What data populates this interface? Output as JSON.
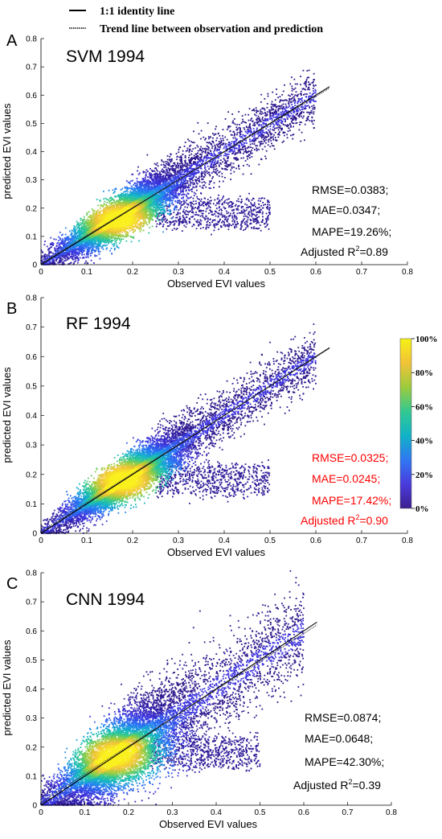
{
  "legend": {
    "identity_label": "1:1 identity line",
    "trend_label": "Trend line between observation and prediction"
  },
  "colorbar": {
    "ticks": [
      "100%",
      "80%",
      "60%",
      "40%",
      "20%",
      "0%"
    ],
    "colors": [
      "#3e1f8f",
      "#4a3bdc",
      "#2f77f2",
      "#11b3c7",
      "#32c991",
      "#9dcb3d",
      "#f2c238",
      "#f5f214"
    ]
  },
  "chart_data": [
    {
      "type": "scatter",
      "panel_letter": "A",
      "title": "SVM 1994",
      "xlabel": "Observed EVI values",
      "ylabel": "predicted EVI values",
      "xlim": [
        0,
        0.8
      ],
      "ylim": [
        0,
        0.8
      ],
      "x_ticks": [
        "0",
        "0.1",
        "0.2",
        "0.3",
        "0.4",
        "0.5",
        "0.6",
        "0.7",
        "0.8"
      ],
      "y_ticks": [
        "0",
        "0.1",
        "0.2",
        "0.3",
        "0.4",
        "0.5",
        "0.6",
        "0.7",
        "0.8"
      ],
      "identity_line": {
        "x": [
          0,
          0.63
        ],
        "y": [
          0,
          0.63
        ]
      },
      "trend_line": {
        "x": [
          0,
          0.63
        ],
        "y": [
          0.005,
          0.625
        ]
      },
      "metrics": {
        "rmse": "RMSE=0.0383;",
        "mae": "MAE=0.0347;",
        "mape": "MAPE=19.26%;",
        "r2_prefix": "Adjusted R",
        "r2_sup": "2",
        "r2_value": "=0.89"
      },
      "metrics_color": "#000000",
      "spread": 0.035,
      "density_center": [
        0.17,
        0.16
      ]
    },
    {
      "type": "scatter",
      "panel_letter": "B",
      "title": "RF 1994",
      "xlabel": "Observed EVI values",
      "ylabel": "predicted EVI values",
      "xlim": [
        0,
        0.8
      ],
      "ylim": [
        0,
        0.8
      ],
      "x_ticks": [
        "0",
        "0.1",
        "0.2",
        "0.3",
        "0.4",
        "0.5",
        "0.6",
        "0.7",
        "0.8"
      ],
      "y_ticks": [
        "0",
        "0.1",
        "0.2",
        "0.3",
        "0.4",
        "0.5",
        "0.6",
        "0.7",
        "0.8"
      ],
      "identity_line": {
        "x": [
          0,
          0.63
        ],
        "y": [
          0,
          0.63
        ]
      },
      "trend_line": {
        "x": [
          0,
          0.63
        ],
        "y": [
          0.005,
          0.628
        ]
      },
      "metrics": {
        "rmse": "RMSE=0.0325;",
        "mae": "MAE=0.0245;",
        "mape": "MAPE=17.42%;",
        "r2_prefix": "Adjusted R",
        "r2_sup": "2",
        "r2_value": "=0.90"
      },
      "metrics_color": "#ff0000",
      "spread": 0.033,
      "density_center": [
        0.18,
        0.18
      ]
    },
    {
      "type": "scatter",
      "panel_letter": "C",
      "title": "CNN 1994",
      "xlabel": "Observed EVI values",
      "ylabel": "predicted EVI values",
      "xlim": [
        0,
        0.8
      ],
      "ylim": [
        0,
        0.8
      ],
      "x_ticks": [
        "0",
        "0.1",
        "0.2",
        "0.3",
        "0.4",
        "0.5",
        "0.6",
        "0.7",
        "0.8"
      ],
      "y_ticks": [
        "0",
        "0.1",
        "0.2",
        "0.3",
        "0.4",
        "0.5",
        "0.6",
        "0.7",
        "0.8"
      ],
      "identity_line": {
        "x": [
          0,
          0.63
        ],
        "y": [
          0,
          0.63
        ]
      },
      "trend_line": {
        "x": [
          0,
          0.63
        ],
        "y": [
          0.01,
          0.62
        ]
      },
      "metrics": {
        "rmse": "RMSE=0.0874;",
        "mae": "MAE=0.0648;",
        "mape": "MAPE=42.30%;",
        "r2_prefix": "Adjusted R",
        "r2_sup": "2",
        "r2_value": "=0.39"
      },
      "metrics_color": "#000000",
      "spread": 0.06,
      "density_center": [
        0.17,
        0.17
      ]
    }
  ]
}
